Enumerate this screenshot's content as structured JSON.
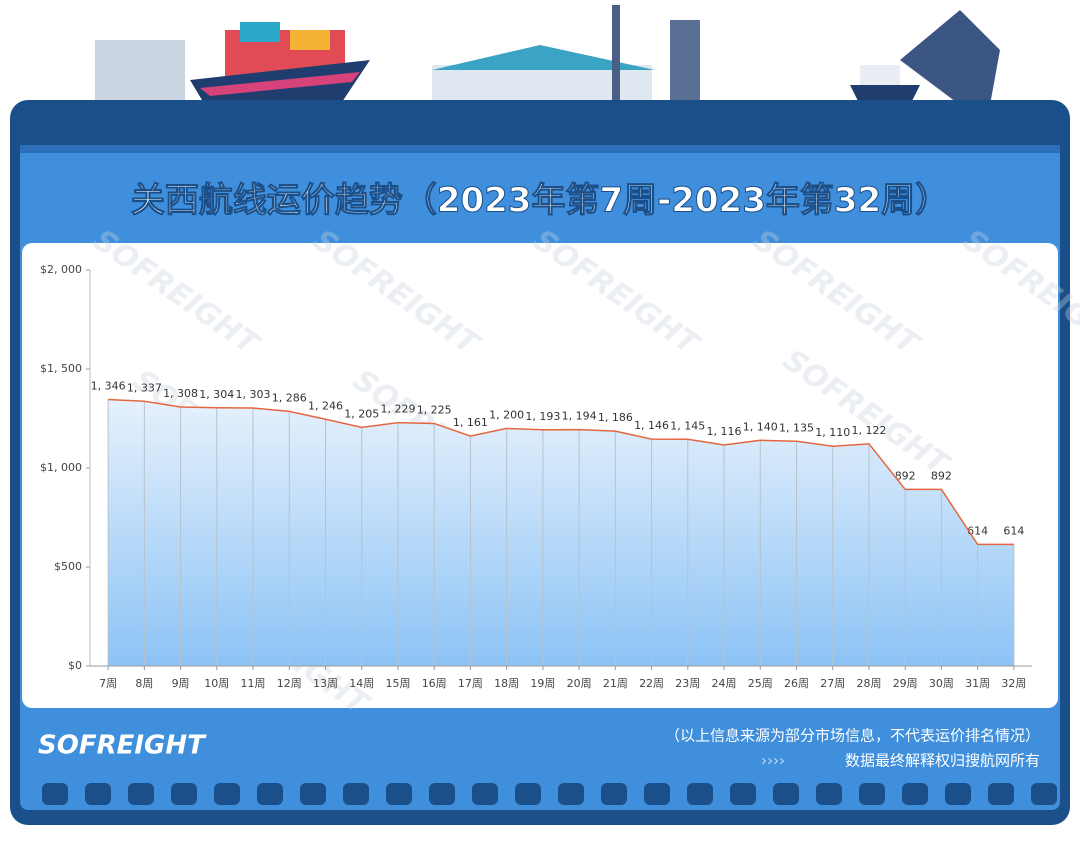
{
  "chart_data": {
    "type": "line",
    "title": "关西航线运价趋势（2023年第7周-2023年第32周）",
    "categories": [
      "7周",
      "8周",
      "9周",
      "10周",
      "11周",
      "12周",
      "13周",
      "14周",
      "15周",
      "16周",
      "17周",
      "18周",
      "19周",
      "20周",
      "21周",
      "22周",
      "23周",
      "24周",
      "25周",
      "26周",
      "27周",
      "28周",
      "29周",
      "30周",
      "31周",
      "32周"
    ],
    "values": [
      1346,
      1337,
      1308,
      1304,
      1303,
      1286,
      1246,
      1205,
      1229,
      1225,
      1161,
      1200,
      1193,
      1194,
      1186,
      1146,
      1145,
      1116,
      1140,
      1135,
      1110,
      1122,
      892,
      892,
      614,
      614
    ],
    "value_labels": [
      "1, 346",
      "1, 337",
      "1, 308",
      "1, 304",
      "1, 303",
      "1, 286",
      "1, 246",
      "1, 205",
      "1, 229",
      "1, 225",
      "1, 161",
      "1, 200",
      "1, 193",
      "1, 194",
      "1, 186",
      "1, 146",
      "1, 145",
      "1, 116",
      "1, 140",
      "1, 135",
      "1, 110",
      "1, 122",
      "892",
      "892",
      "614",
      "614"
    ],
    "color": "#e5663f",
    "area": true,
    "ylim": [
      0,
      2000
    ],
    "yticks": [
      {
        "value": 0,
        "label": "$0"
      },
      {
        "value": 500,
        "label": "$500"
      },
      {
        "value": 1000,
        "label": "$1, 000"
      },
      {
        "value": 1500,
        "label": "$1, 500"
      },
      {
        "value": 2000,
        "label": "$2, 000"
      }
    ],
    "grid": true
  },
  "logo": "SOFREIGHT",
  "watermark": "SOFREIGHT",
  "footer": {
    "note": "（以上信息来源为部分市场信息，不代表运价排名情况）",
    "rights": "数据最终解释权归搜航网所有",
    "arrows": "››››"
  }
}
